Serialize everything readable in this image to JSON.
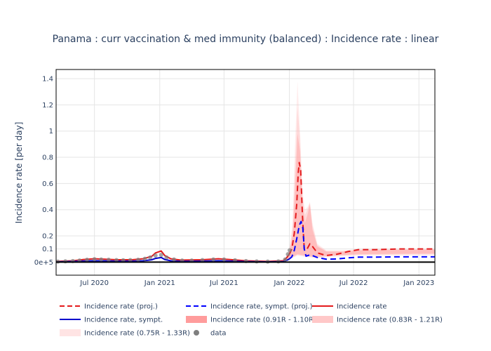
{
  "chart_data": {
    "type": "line",
    "title": "Panama : curr vaccination & med immunity (balanced) : Incidence rate : linear",
    "ylabel": "Incidence rate [per day]",
    "xlabel": "",
    "x_range": [
      "2020-03-15",
      "2023-02-15"
    ],
    "ylim": [
      -0.1,
      1.47
    ],
    "grid": true,
    "legend_position": "bottom",
    "x_ticks": [
      {
        "date": "2020-07-01",
        "label": "Jul 2020"
      },
      {
        "date": "2021-01-01",
        "label": "Jan 2021"
      },
      {
        "date": "2021-07-01",
        "label": "Jul 2021"
      },
      {
        "date": "2022-01-01",
        "label": "Jan 2022"
      },
      {
        "date": "2022-07-01",
        "label": "Jul 2022"
      },
      {
        "date": "2023-01-01",
        "label": "Jan 2023"
      }
    ],
    "y_ticks": [
      {
        "value": 0,
        "label": "0e+5"
      },
      {
        "value": 0.1,
        "label": "0.1"
      },
      {
        "value": 0.2,
        "label": "0.2"
      },
      {
        "value": 0.4,
        "label": "0.4"
      },
      {
        "value": 0.6,
        "label": "0.6"
      },
      {
        "value": 0.8,
        "label": "0.8"
      },
      {
        "value": 1.0,
        "label": "1"
      },
      {
        "value": 1.2,
        "label": "1.2"
      },
      {
        "value": 1.4,
        "label": "1.4"
      }
    ],
    "series": [
      {
        "name": "Incidence rate (0.75R - 1.33R)",
        "kind": "band",
        "color": "#ffb6b6",
        "opacity": 0.25,
        "upper": [
          [
            "2021-12-20",
            0.02
          ],
          [
            "2022-01-01",
            0.1
          ],
          [
            "2022-01-10",
            0.3
          ],
          [
            "2022-01-17",
            0.9
          ],
          [
            "2022-01-24",
            1.38
          ],
          [
            "2022-01-31",
            1.0
          ],
          [
            "2022-02-07",
            0.55
          ],
          [
            "2022-02-14",
            0.4
          ],
          [
            "2022-02-21",
            0.42
          ],
          [
            "2022-02-28",
            0.46
          ],
          [
            "2022-03-07",
            0.3
          ],
          [
            "2022-03-21",
            0.14
          ],
          [
            "2022-04-15",
            0.09
          ],
          [
            "2022-06-01",
            0.09
          ],
          [
            "2022-07-15",
            0.1
          ],
          [
            "2023-02-15",
            0.1
          ]
        ],
        "lower": [
          [
            "2021-12-20",
            0.0
          ],
          [
            "2022-01-01",
            0.02
          ],
          [
            "2022-01-10",
            0.03
          ],
          [
            "2022-01-24",
            0.05
          ],
          [
            "2022-02-14",
            0.04
          ],
          [
            "2022-03-15",
            0.03
          ],
          [
            "2022-05-01",
            0.04
          ],
          [
            "2022-07-15",
            0.05
          ],
          [
            "2023-02-15",
            0.05
          ]
        ]
      },
      {
        "name": "Incidence rate (0.83R - 1.21R)",
        "kind": "band",
        "color": "#ffb6b6",
        "opacity": 0.35,
        "upper": [
          [
            "2021-12-20",
            0.02
          ],
          [
            "2022-01-01",
            0.09
          ],
          [
            "2022-01-10",
            0.25
          ],
          [
            "2022-01-17",
            0.72
          ],
          [
            "2022-01-24",
            1.18
          ],
          [
            "2022-01-31",
            0.95
          ],
          [
            "2022-02-07",
            0.5
          ],
          [
            "2022-02-14",
            0.36
          ],
          [
            "2022-02-21",
            0.4
          ],
          [
            "2022-02-28",
            0.45
          ],
          [
            "2022-03-07",
            0.28
          ],
          [
            "2022-03-21",
            0.13
          ],
          [
            "2022-04-15",
            0.085
          ],
          [
            "2022-06-01",
            0.085
          ],
          [
            "2022-07-15",
            0.095
          ],
          [
            "2023-02-15",
            0.1
          ]
        ],
        "lower": [
          [
            "2021-12-20",
            0.0
          ],
          [
            "2022-01-01",
            0.025
          ],
          [
            "2022-01-10",
            0.035
          ],
          [
            "2022-01-24",
            0.055
          ],
          [
            "2022-02-14",
            0.045
          ],
          [
            "2022-03-15",
            0.035
          ],
          [
            "2022-05-01",
            0.045
          ],
          [
            "2022-07-15",
            0.055
          ],
          [
            "2023-02-15",
            0.06
          ]
        ]
      },
      {
        "name": "Incidence rate (0.91R - 1.10R)",
        "kind": "band",
        "color": "#ff9c9c",
        "opacity": 0.45,
        "upper": [
          [
            "2021-12-20",
            0.02
          ],
          [
            "2022-01-01",
            0.08
          ],
          [
            "2022-01-10",
            0.2
          ],
          [
            "2022-01-17",
            0.55
          ],
          [
            "2022-01-24",
            0.98
          ],
          [
            "2022-01-31",
            0.85
          ],
          [
            "2022-02-07",
            0.45
          ],
          [
            "2022-02-14",
            0.3
          ],
          [
            "2022-02-21",
            0.36
          ],
          [
            "2022-02-28",
            0.44
          ],
          [
            "2022-03-07",
            0.25
          ],
          [
            "2022-03-21",
            0.12
          ],
          [
            "2022-04-15",
            0.08
          ],
          [
            "2022-06-01",
            0.08
          ],
          [
            "2022-07-15",
            0.09
          ],
          [
            "2023-02-15",
            0.095
          ]
        ],
        "lower": [
          [
            "2021-12-20",
            0.0
          ],
          [
            "2022-01-01",
            0.03
          ],
          [
            "2022-01-10",
            0.04
          ],
          [
            "2022-01-24",
            0.06
          ],
          [
            "2022-02-14",
            0.05
          ],
          [
            "2022-03-15",
            0.04
          ],
          [
            "2022-05-01",
            0.05
          ],
          [
            "2022-07-15",
            0.06
          ],
          [
            "2023-02-15",
            0.065
          ]
        ]
      },
      {
        "name": "Incidence rate",
        "kind": "line",
        "color": "#e41a1c",
        "dash": "solid",
        "width": 2,
        "points": [
          [
            "2020-03-15",
            0.005
          ],
          [
            "2020-05-01",
            0.01
          ],
          [
            "2020-06-01",
            0.02
          ],
          [
            "2020-07-01",
            0.025
          ],
          [
            "2020-08-01",
            0.022
          ],
          [
            "2020-09-01",
            0.018
          ],
          [
            "2020-10-15",
            0.018
          ],
          [
            "2020-11-15",
            0.025
          ],
          [
            "2020-12-10",
            0.045
          ],
          [
            "2020-12-20",
            0.07
          ],
          [
            "2021-01-05",
            0.085
          ],
          [
            "2021-01-15",
            0.05
          ],
          [
            "2021-02-01",
            0.025
          ],
          [
            "2021-03-01",
            0.015
          ],
          [
            "2021-05-01",
            0.018
          ],
          [
            "2021-06-15",
            0.025
          ],
          [
            "2021-07-15",
            0.02
          ],
          [
            "2021-09-01",
            0.01
          ],
          [
            "2021-11-01",
            0.005
          ],
          [
            "2021-12-15",
            0.01
          ],
          [
            "2021-12-25",
            0.035
          ],
          [
            "2022-01-01",
            0.06
          ]
        ]
      },
      {
        "name": "Incidence rate, sympt.",
        "kind": "line",
        "color": "#0000cc",
        "dash": "solid",
        "width": 2,
        "points": [
          [
            "2020-03-15",
            0.002
          ],
          [
            "2020-05-01",
            0.005
          ],
          [
            "2020-06-01",
            0.008
          ],
          [
            "2020-07-01",
            0.01
          ],
          [
            "2020-08-01",
            0.009
          ],
          [
            "2020-09-01",
            0.007
          ],
          [
            "2020-10-15",
            0.007
          ],
          [
            "2020-11-15",
            0.01
          ],
          [
            "2020-12-10",
            0.018
          ],
          [
            "2020-12-20",
            0.028
          ],
          [
            "2021-01-05",
            0.035
          ],
          [
            "2021-01-15",
            0.02
          ],
          [
            "2021-02-01",
            0.01
          ],
          [
            "2021-03-01",
            0.006
          ],
          [
            "2021-05-01",
            0.007
          ],
          [
            "2021-06-15",
            0.01
          ],
          [
            "2021-07-15",
            0.008
          ],
          [
            "2021-09-01",
            0.004
          ],
          [
            "2021-11-01",
            0.002
          ],
          [
            "2021-12-15",
            0.004
          ],
          [
            "2021-12-25",
            0.014
          ],
          [
            "2022-01-01",
            0.024
          ]
        ]
      },
      {
        "name": "Incidence rate (proj.)",
        "kind": "line",
        "color": "#e41a1c",
        "dash": "dash",
        "width": 2,
        "points": [
          [
            "2022-01-01",
            0.06
          ],
          [
            "2022-01-08",
            0.1
          ],
          [
            "2022-01-15",
            0.22
          ],
          [
            "2022-01-22",
            0.45
          ],
          [
            "2022-01-26",
            0.68
          ],
          [
            "2022-01-29",
            0.76
          ],
          [
            "2022-02-02",
            0.7
          ],
          [
            "2022-02-07",
            0.35
          ],
          [
            "2022-02-12",
            0.1
          ],
          [
            "2022-02-20",
            0.1
          ],
          [
            "2022-02-28",
            0.14
          ],
          [
            "2022-03-07",
            0.12
          ],
          [
            "2022-03-21",
            0.07
          ],
          [
            "2022-04-15",
            0.05
          ],
          [
            "2022-05-15",
            0.06
          ],
          [
            "2022-06-15",
            0.08
          ],
          [
            "2022-07-15",
            0.095
          ],
          [
            "2022-09-01",
            0.095
          ],
          [
            "2022-11-01",
            0.1
          ],
          [
            "2023-02-15",
            0.1
          ]
        ]
      },
      {
        "name": "Incidence rate, sympt. (proj.)",
        "kind": "line",
        "color": "#0000ff",
        "dash": "dash",
        "width": 2,
        "points": [
          [
            "2022-01-01",
            0.024
          ],
          [
            "2022-01-08",
            0.04
          ],
          [
            "2022-01-15",
            0.09
          ],
          [
            "2022-01-22",
            0.18
          ],
          [
            "2022-01-29",
            0.28
          ],
          [
            "2022-02-03",
            0.31
          ],
          [
            "2022-02-08",
            0.26
          ],
          [
            "2022-02-12",
            0.1
          ],
          [
            "2022-02-17",
            0.045
          ],
          [
            "2022-02-28",
            0.055
          ],
          [
            "2022-03-07",
            0.05
          ],
          [
            "2022-03-21",
            0.035
          ],
          [
            "2022-04-15",
            0.022
          ],
          [
            "2022-05-15",
            0.024
          ],
          [
            "2022-06-15",
            0.032
          ],
          [
            "2022-07-15",
            0.038
          ],
          [
            "2022-09-01",
            0.038
          ],
          [
            "2022-11-01",
            0.04
          ],
          [
            "2023-02-15",
            0.04
          ]
        ]
      },
      {
        "name": "data",
        "kind": "scatter",
        "color": "#7f7f7f",
        "points": [
          [
            "2020-03-20",
            0.004
          ],
          [
            "2020-04-10",
            0.006
          ],
          [
            "2020-05-01",
            0.008
          ],
          [
            "2020-05-20",
            0.012
          ],
          [
            "2020-06-10",
            0.018
          ],
          [
            "2020-07-01",
            0.022
          ],
          [
            "2020-07-20",
            0.02
          ],
          [
            "2020-08-10",
            0.018
          ],
          [
            "2020-09-01",
            0.015
          ],
          [
            "2020-09-20",
            0.014
          ],
          [
            "2020-10-10",
            0.015
          ],
          [
            "2020-11-01",
            0.018
          ],
          [
            "2020-11-20",
            0.025
          ],
          [
            "2020-12-05",
            0.035
          ],
          [
            "2020-12-20",
            0.05
          ],
          [
            "2021-01-05",
            0.055
          ],
          [
            "2021-01-20",
            0.035
          ],
          [
            "2021-02-10",
            0.02
          ],
          [
            "2021-03-05",
            0.012
          ],
          [
            "2021-04-01",
            0.012
          ],
          [
            "2021-05-01",
            0.015
          ],
          [
            "2021-06-01",
            0.02
          ],
          [
            "2021-07-01",
            0.02
          ],
          [
            "2021-08-01",
            0.014
          ],
          [
            "2021-09-01",
            0.008
          ],
          [
            "2021-10-01",
            0.005
          ],
          [
            "2021-11-01",
            0.004
          ],
          [
            "2021-12-01",
            0.005
          ],
          [
            "2021-12-20",
            0.02
          ],
          [
            "2021-12-28",
            0.06
          ],
          [
            "2022-01-02",
            0.09
          ]
        ]
      }
    ],
    "legend": [
      {
        "label": "Incidence rate (proj.)",
        "style": "dash",
        "color": "#e41a1c"
      },
      {
        "label": "Incidence rate, sympt. (proj.)",
        "style": "dash",
        "color": "#0000ff"
      },
      {
        "label": "Incidence rate",
        "style": "solid",
        "color": "#e41a1c"
      },
      {
        "label": "Incidence rate, sympt.",
        "style": "solid",
        "color": "#0000cc"
      },
      {
        "label": "Incidence rate (0.91R - 1.10R)",
        "style": "band",
        "color": "#ff9c9c"
      },
      {
        "label": "Incidence rate (0.83R - 1.21R)",
        "style": "band",
        "color": "#ffc8c8"
      },
      {
        "label": "Incidence rate (0.75R - 1.33R)",
        "style": "band",
        "color": "#ffe4e4"
      },
      {
        "label": "data",
        "style": "marker",
        "color": "#7f7f7f"
      }
    ]
  }
}
